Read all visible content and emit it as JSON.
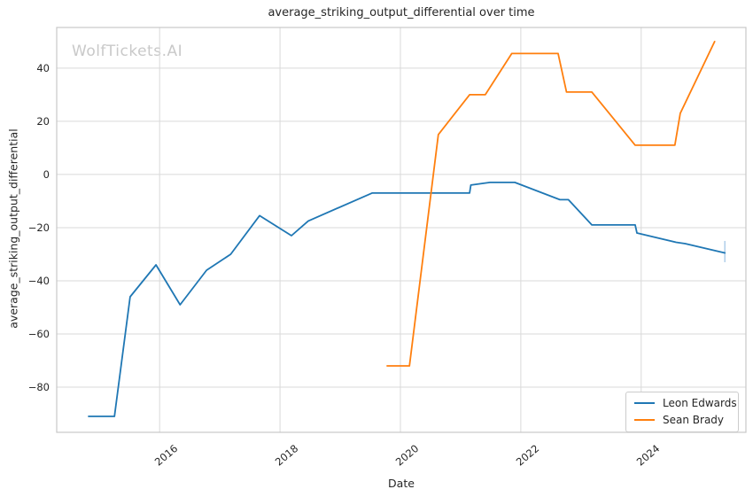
{
  "watermark": "WolfTickets.AI",
  "colors": {
    "blue": "#1f77b4",
    "orange": "#ff7f0e",
    "grid": "#d9d9d9",
    "spine": "#c7c7c7",
    "watermark": "#c9c9c9",
    "text": "#262626"
  },
  "chart_data": {
    "type": "line",
    "title": "average_striking_output_differential over time",
    "xlabel": "Date",
    "ylabel": "average_striking_output_differential",
    "grid": true,
    "legend_position": "lower right",
    "xlim": [
      2014.29,
      2025.74
    ],
    "ylim": [
      -97,
      55.3
    ],
    "x_ticks": [
      {
        "value": 2016,
        "label": "2016"
      },
      {
        "value": 2018,
        "label": "2018"
      },
      {
        "value": 2020,
        "label": "2020"
      },
      {
        "value": 2022,
        "label": "2022"
      },
      {
        "value": 2024,
        "label": "2024"
      }
    ],
    "y_ticks": [
      {
        "value": 40,
        "label": "40"
      },
      {
        "value": 20,
        "label": "20"
      },
      {
        "value": 0,
        "label": "0"
      },
      {
        "value": -20,
        "label": "−20"
      },
      {
        "value": -40,
        "label": "−40"
      },
      {
        "value": -60,
        "label": "−60"
      },
      {
        "value": -80,
        "label": "−80"
      }
    ],
    "series": [
      {
        "name": "Leon Edwards",
        "color": "#1f77b4",
        "points": [
          [
            2014.82,
            -91
          ],
          [
            2015.25,
            -91
          ],
          [
            2015.51,
            -46
          ],
          [
            2015.94,
            -34
          ],
          [
            2016.34,
            -49
          ],
          [
            2016.78,
            -36
          ],
          [
            2017.18,
            -30
          ],
          [
            2017.66,
            -15.5
          ],
          [
            2018.19,
            -23
          ],
          [
            2018.47,
            -17.5
          ],
          [
            2019.53,
            -7
          ],
          [
            2021.15,
            -7
          ],
          [
            2021.17,
            -4
          ],
          [
            2021.49,
            -3
          ],
          [
            2021.9,
            -3
          ],
          [
            2022.65,
            -9.5
          ],
          [
            2022.79,
            -9.5
          ],
          [
            2023.18,
            -19
          ],
          [
            2023.9,
            -19
          ],
          [
            2023.93,
            -22
          ],
          [
            2024.58,
            -25.5
          ],
          [
            2024.73,
            -26
          ],
          [
            2025.39,
            -29.5
          ]
        ]
      },
      {
        "name": "Sean Brady",
        "color": "#ff7f0e",
        "points": [
          [
            2019.78,
            -72
          ],
          [
            2020.15,
            -72
          ],
          [
            2020.63,
            15
          ],
          [
            2021.15,
            30
          ],
          [
            2021.41,
            30
          ],
          [
            2021.85,
            45.5
          ],
          [
            2022.62,
            45.5
          ],
          [
            2022.76,
            31
          ],
          [
            2023.18,
            31
          ],
          [
            2023.9,
            11
          ],
          [
            2024.56,
            11
          ],
          [
            2024.65,
            23
          ],
          [
            2025.22,
            50
          ]
        ]
      }
    ],
    "error_bar": {
      "series": "Leon Edwards",
      "x": 2025.39,
      "y_low": -33,
      "y_high": -25,
      "color": "#aacbe8"
    }
  }
}
